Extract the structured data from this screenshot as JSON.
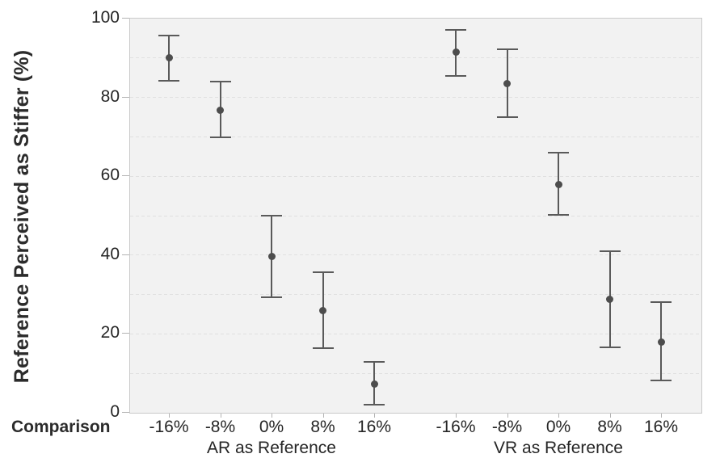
{
  "chart_data": {
    "type": "scatter",
    "title": "",
    "ylabel": "Reference Perceived as Stiffer (%)",
    "xlabel": "Comparison",
    "ylim": [
      0,
      100
    ],
    "yticks": [
      0,
      20,
      40,
      60,
      80,
      100
    ],
    "gridline_step": 10,
    "grid": "dashed horizontal",
    "legend": "none",
    "categories": [
      "-16%",
      "-8%",
      "0%",
      "8%",
      "16%"
    ],
    "series": [
      {
        "name": "AR as Reference",
        "points": [
          {
            "category": "-16%",
            "mean": 90.0,
            "ci_low": 84.0,
            "ci_high": 96.0
          },
          {
            "category": "-8%",
            "mean": 76.8,
            "ci_low": 69.7,
            "ci_high": 84.2
          },
          {
            "category": "0%",
            "mean": 39.6,
            "ci_low": 29.0,
            "ci_high": 50.3
          },
          {
            "category": "8%",
            "mean": 25.9,
            "ci_low": 16.1,
            "ci_high": 35.8
          },
          {
            "category": "16%",
            "mean": 7.3,
            "ci_low": 1.8,
            "ci_high": 13.1
          }
        ]
      },
      {
        "name": "VR as Reference",
        "points": [
          {
            "category": "-16%",
            "mean": 91.4,
            "ci_low": 85.3,
            "ci_high": 97.3
          },
          {
            "category": "-8%",
            "mean": 83.6,
            "ci_low": 74.7,
            "ci_high": 92.4
          },
          {
            "category": "0%",
            "mean": 57.9,
            "ci_low": 50.1,
            "ci_high": 66.1
          },
          {
            "category": "8%",
            "mean": 28.8,
            "ci_low": 16.4,
            "ci_high": 41.2
          },
          {
            "category": "16%",
            "mean": 18.0,
            "ci_low": 8.0,
            "ci_high": 28.3
          }
        ]
      }
    ],
    "colors": {
      "marker": "#4d4d4d",
      "errorbar": "#5a5a5a",
      "plot_background": "#f2f2f2",
      "gridline": "#e0e0e0",
      "axis": "#b3b3b3",
      "border": "#c9c9c9",
      "text": "#2b2b2b"
    }
  }
}
